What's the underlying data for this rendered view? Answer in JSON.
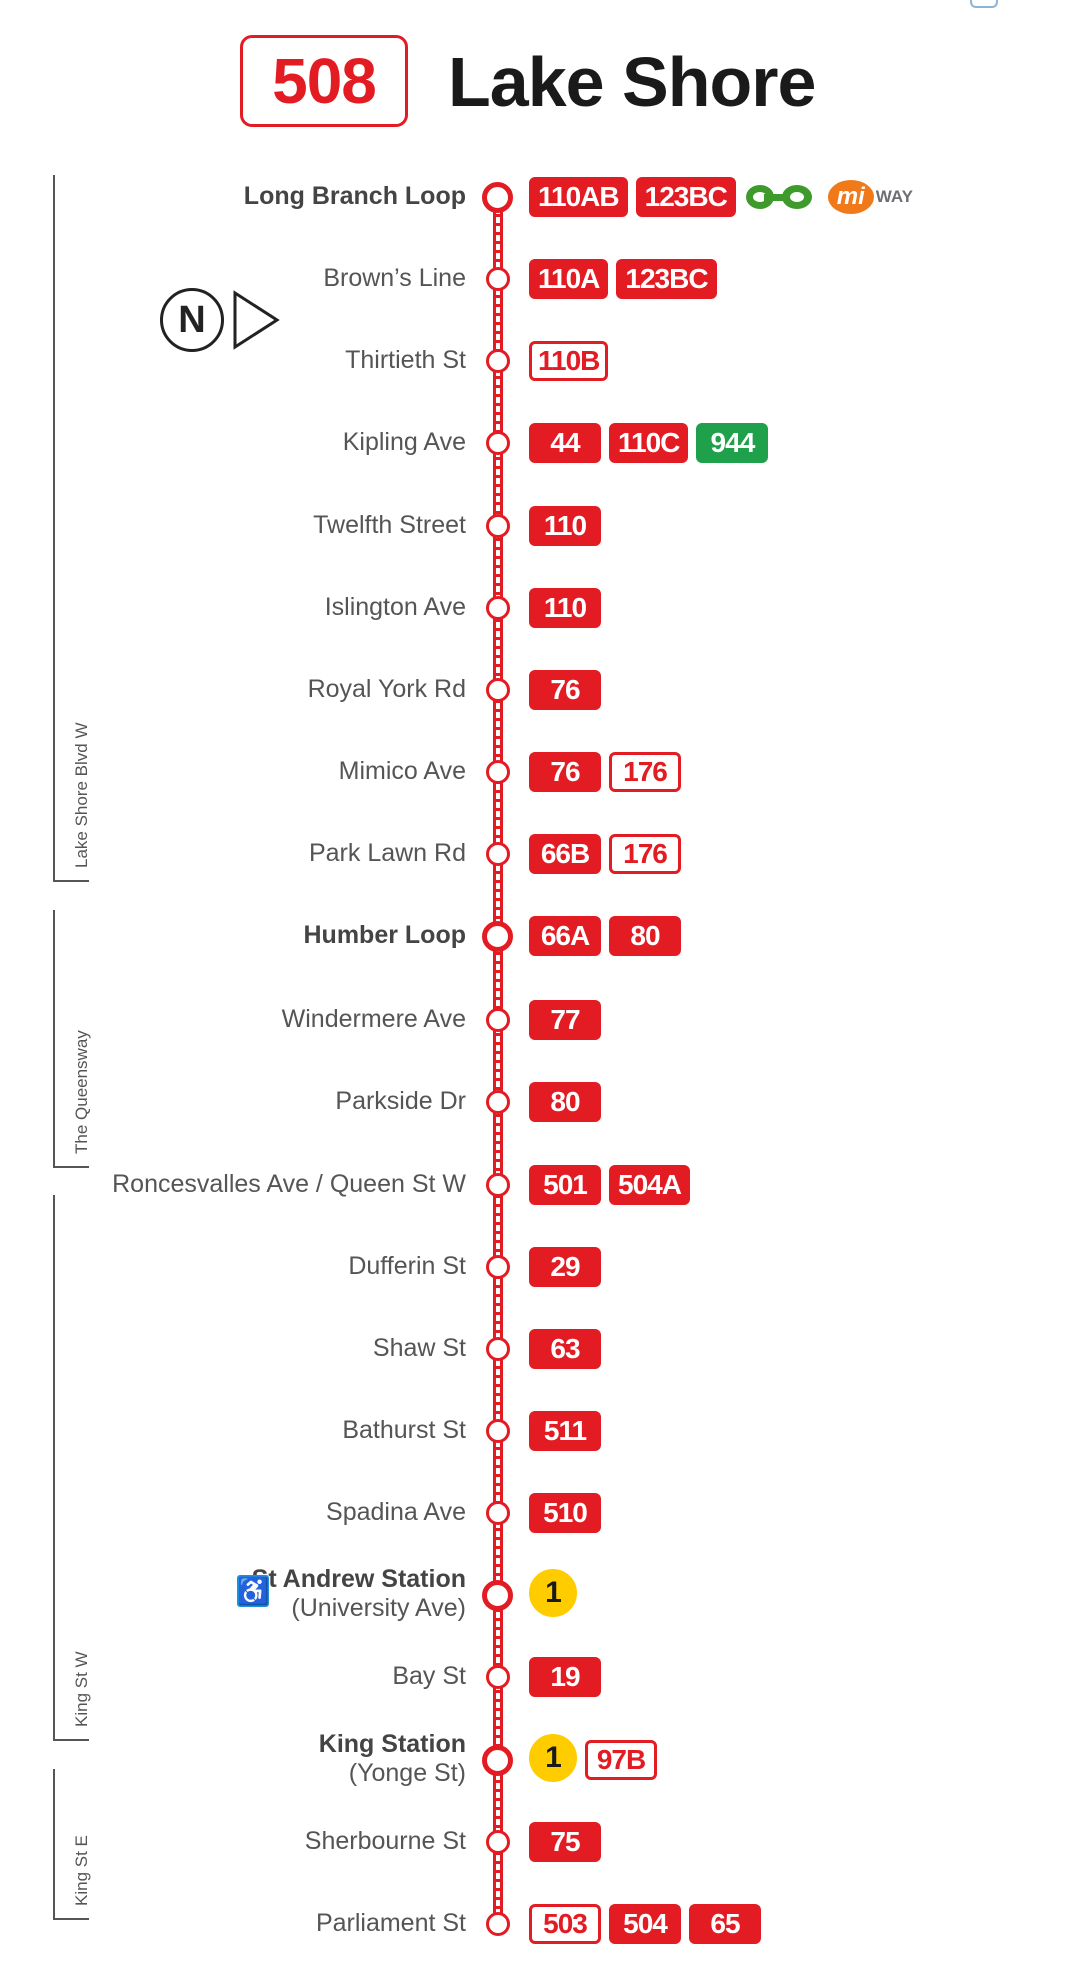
{
  "header": {
    "route_number": "508",
    "route_name": "Lake Shore"
  },
  "north_arrow": {
    "letter": "N"
  },
  "streets": [
    {
      "label": "Lake Shore Blvd W"
    },
    {
      "label": "The Queensway"
    },
    {
      "label": "King St W"
    },
    {
      "label": "King St E"
    }
  ],
  "stops": [
    {
      "name": "Long Branch Loop",
      "major": true,
      "connections": [
        {
          "label": "110AB",
          "style": "solid"
        },
        {
          "label": "123BC",
          "style": "solid"
        }
      ],
      "logos": [
        "go-transit-logo",
        "miway-logo"
      ],
      "miway": {
        "mi": "mi",
        "way": "WAY"
      }
    },
    {
      "name": "Brown’s Line",
      "connections": [
        {
          "label": "110A",
          "style": "solid"
        },
        {
          "label": "123BC",
          "style": "solid"
        }
      ]
    },
    {
      "name": "Thirtieth St",
      "connections": [
        {
          "label": "110B",
          "style": "outline"
        }
      ]
    },
    {
      "name": "Kipling Ave",
      "connections": [
        {
          "label": "44",
          "style": "solid"
        },
        {
          "label": "110C",
          "style": "solid"
        },
        {
          "label": "944",
          "style": "green"
        }
      ]
    },
    {
      "name": "Twelfth Street",
      "connections": [
        {
          "label": "110",
          "style": "solid"
        }
      ]
    },
    {
      "name": "Islington Ave",
      "connections": [
        {
          "label": "110",
          "style": "solid"
        }
      ]
    },
    {
      "name": "Royal York Rd",
      "connections": [
        {
          "label": "76",
          "style": "solid"
        }
      ]
    },
    {
      "name": "Mimico Ave",
      "connections": [
        {
          "label": "76",
          "style": "solid"
        },
        {
          "label": "176",
          "style": "outline"
        }
      ]
    },
    {
      "name": "Park Lawn Rd",
      "connections": [
        {
          "label": "66B",
          "style": "solid"
        },
        {
          "label": "176",
          "style": "outline"
        }
      ]
    },
    {
      "name": "Humber Loop",
      "major": true,
      "connections": [
        {
          "label": "66A",
          "style": "solid"
        },
        {
          "label": "80",
          "style": "solid"
        }
      ]
    },
    {
      "name": "Windermere Ave",
      "connections": [
        {
          "label": "77",
          "style": "solid"
        }
      ]
    },
    {
      "name": "Parkside Dr",
      "connections": [
        {
          "label": "80",
          "style": "solid"
        }
      ]
    },
    {
      "name": "Roncesvalles Ave / Queen St W",
      "connections": [
        {
          "label": "501",
          "style": "solid"
        },
        {
          "label": "504A",
          "style": "solid"
        }
      ]
    },
    {
      "name": "Dufferin St",
      "connections": [
        {
          "label": "29",
          "style": "solid"
        }
      ]
    },
    {
      "name": "Shaw St",
      "connections": [
        {
          "label": "63",
          "style": "solid"
        }
      ]
    },
    {
      "name": "Bathurst St",
      "connections": [
        {
          "label": "511",
          "style": "solid"
        }
      ]
    },
    {
      "name": "Spadina Ave",
      "connections": [
        {
          "label": "510",
          "style": "solid"
        }
      ]
    },
    {
      "name": "St Andrew Station",
      "sub": "(University Ave)",
      "major": true,
      "accessible": true,
      "connections": [
        {
          "label": "1",
          "style": "subway"
        }
      ]
    },
    {
      "name": "Bay St",
      "connections": [
        {
          "label": "19",
          "style": "solid"
        }
      ]
    },
    {
      "name": "King Station",
      "sub": "(Yonge St)",
      "major": true,
      "connections": [
        {
          "label": "1",
          "style": "subway"
        },
        {
          "label": "97B",
          "style": "outline"
        }
      ]
    },
    {
      "name": "Sherbourne St",
      "connections": [
        {
          "label": "75",
          "style": "solid"
        }
      ]
    },
    {
      "name": "Parliament St",
      "connections": [
        {
          "label": "503",
          "style": "outline"
        },
        {
          "label": "504",
          "style": "solid"
        },
        {
          "label": "65",
          "style": "solid"
        }
      ]
    }
  ],
  "accessibility_icon": "wheelchair-icon",
  "colors": {
    "ttc_red": "#e31c24",
    "miway_green": "#1fa04a",
    "subway_yellow": "#ffcc00",
    "accessible_blue": "#1c8fdd"
  }
}
